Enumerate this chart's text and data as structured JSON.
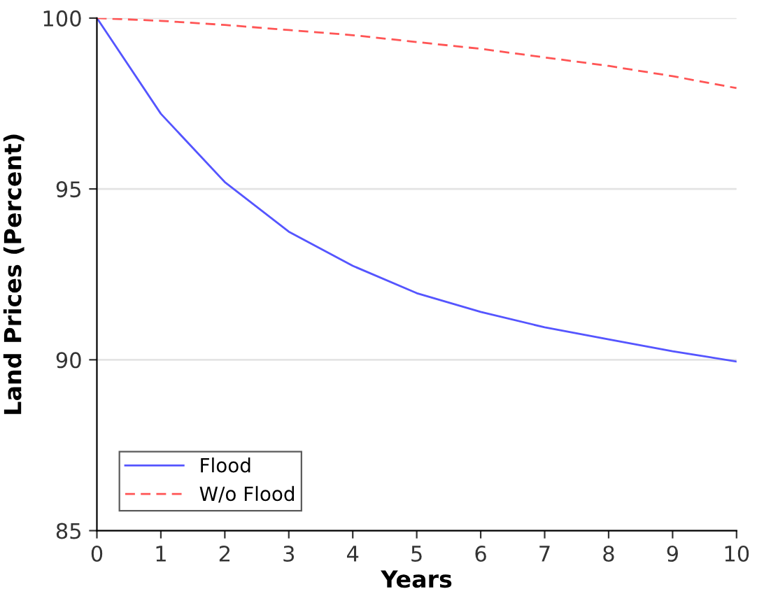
{
  "chart_data": {
    "type": "line",
    "xlabel": "Years",
    "ylabel": "Land Prices (Percent)",
    "x": [
      0,
      1,
      2,
      3,
      4,
      5,
      6,
      7,
      8,
      9,
      10
    ],
    "series": [
      {
        "name": "Flood",
        "color": "#5555ff",
        "line_style": "solid",
        "values": [
          100,
          97.2,
          95.2,
          93.75,
          92.75,
          91.95,
          91.4,
          90.95,
          90.6,
          90.25,
          89.95
        ]
      },
      {
        "name": "W/o Flood",
        "color": "#ff5555",
        "line_style": "dashed",
        "values": [
          100,
          99.92,
          99.8,
          99.65,
          99.5,
          99.3,
          99.1,
          98.85,
          98.6,
          98.3,
          97.95
        ]
      }
    ],
    "xlim": [
      0,
      10
    ],
    "ylim": [
      85,
      100
    ],
    "xticks": [
      0,
      1,
      2,
      3,
      4,
      5,
      6,
      7,
      8,
      9,
      10
    ],
    "yticks": [
      85,
      90,
      95,
      100
    ],
    "grid": "y",
    "legend": "bottom left",
    "marker": "none"
  }
}
